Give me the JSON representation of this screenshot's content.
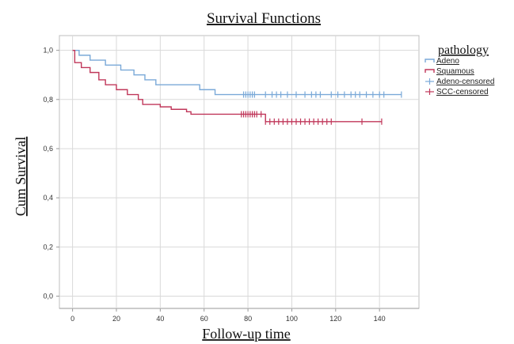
{
  "chart_data": {
    "type": "line",
    "title": "Survival Functions",
    "xlabel": "Follow-up time",
    "ylabel": "Cum Survival",
    "xlim": [
      -6,
      158
    ],
    "ylim": [
      -0.05,
      1.06
    ],
    "x_ticks": [
      0,
      20,
      40,
      60,
      80,
      100,
      120,
      140
    ],
    "y_ticks": [
      0.0,
      0.2,
      0.4,
      0.6,
      0.8,
      1.0
    ],
    "y_tick_labels": [
      "0,0",
      "0,2",
      "0,4",
      "0,6",
      "0,8",
      "1,0"
    ],
    "grid": true,
    "legend": {
      "title": "pathology",
      "placement": "right",
      "entries": [
        "Adeno",
        "Squamous",
        "Adeno-censored",
        "SCC-censored"
      ]
    },
    "colors": {
      "adeno": "#7aa9d8",
      "squamous": "#c0375a",
      "grid": "#d9d9d9",
      "frame": "#bfbfbf"
    },
    "series": [
      {
        "name": "Adeno",
        "step": true,
        "x": [
          0,
          3,
          8,
          15,
          22,
          28,
          33,
          38,
          43,
          58,
          62,
          65,
          150
        ],
        "y": [
          1.0,
          0.98,
          0.96,
          0.94,
          0.92,
          0.9,
          0.88,
          0.86,
          0.86,
          0.84,
          0.84,
          0.82,
          0.82
        ],
        "censored_x": [
          78,
          79,
          80,
          81,
          82,
          83,
          88,
          91,
          93,
          95,
          98,
          102,
          106,
          109,
          111,
          113,
          118,
          121,
          124,
          127,
          129,
          131,
          134,
          137,
          140,
          142,
          150
        ]
      },
      {
        "name": "Squamous",
        "step": true,
        "x": [
          0,
          1,
          4,
          8,
          12,
          15,
          20,
          25,
          30,
          32,
          40,
          45,
          52,
          54,
          87,
          88,
          141
        ],
        "y": [
          1.0,
          0.95,
          0.93,
          0.91,
          0.88,
          0.86,
          0.84,
          0.82,
          0.8,
          0.78,
          0.77,
          0.76,
          0.75,
          0.74,
          0.74,
          0.71,
          0.71
        ],
        "censored_x": [
          77,
          78,
          79,
          80,
          81,
          82,
          83,
          84,
          86,
          88,
          90,
          92,
          94,
          96,
          98,
          100,
          102,
          104,
          106,
          108,
          110,
          112,
          114,
          116,
          118,
          132,
          141
        ]
      }
    ]
  }
}
